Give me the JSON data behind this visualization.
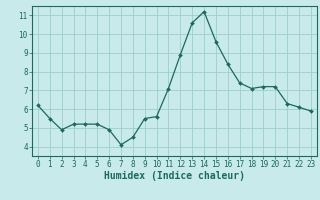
{
  "x": [
    0,
    1,
    2,
    3,
    4,
    5,
    6,
    7,
    8,
    9,
    10,
    11,
    12,
    13,
    14,
    15,
    16,
    17,
    18,
    19,
    20,
    21,
    22,
    23
  ],
  "y": [
    6.2,
    5.5,
    4.9,
    5.2,
    5.2,
    5.2,
    4.9,
    4.1,
    4.5,
    5.5,
    5.6,
    7.1,
    8.9,
    10.6,
    11.2,
    9.6,
    8.4,
    7.4,
    7.1,
    7.2,
    7.2,
    6.3,
    6.1,
    5.9
  ],
  "line_color": "#1a6b5a",
  "marker": "D",
  "marker_size": 2.0,
  "bg_color": "#c8eaea",
  "grid_color": "#9ecece",
  "axis_color": "#1a6b5a",
  "xlabel": "Humidex (Indice chaleur)",
  "xlim": [
    -0.5,
    23.5
  ],
  "ylim": [
    3.5,
    11.5
  ],
  "yticks": [
    4,
    5,
    6,
    7,
    8,
    9,
    10,
    11
  ],
  "xtick_labels": [
    "0",
    "1",
    "2",
    "3",
    "4",
    "5",
    "6",
    "7",
    "8",
    "9",
    "10",
    "11",
    "12",
    "13",
    "14",
    "15",
    "16",
    "17",
    "18",
    "19",
    "20",
    "21",
    "22",
    "23"
  ],
  "tick_fontsize": 5.5,
  "label_fontsize": 7.0
}
